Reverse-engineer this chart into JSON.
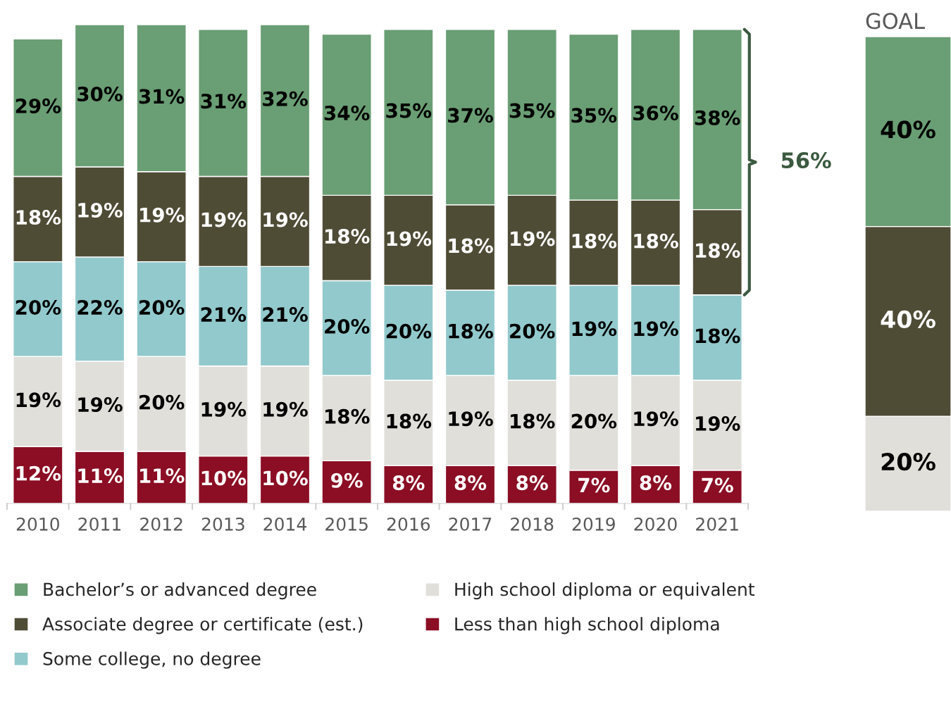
{
  "chart_data": [
    {
      "type": "bar",
      "stacked": true,
      "tick_labels": "x",
      "legend": "bottom",
      "grid": false,
      "categories": [
        "2010",
        "2011",
        "2012",
        "2013",
        "2014",
        "2015",
        "2016",
        "2017",
        "2018",
        "2019",
        "2020",
        "2021"
      ],
      "series": [
        {
          "name": "Less than high school diploma",
          "color": "#8b0e24",
          "values": [
            12,
            11,
            11,
            10,
            10,
            9,
            8,
            8,
            8,
            7,
            8,
            7
          ],
          "value_labels": [
            "12%",
            "11%",
            "11%",
            "10%",
            "10%",
            "9%",
            "8%",
            "8%",
            "8%",
            "7%",
            "8%",
            "7%"
          ]
        },
        {
          "name": "High school diploma or equivalent",
          "color": "#e0dfda",
          "values": [
            19,
            19,
            20,
            19,
            19,
            18,
            18,
            19,
            18,
            20,
            19,
            19
          ],
          "value_labels": [
            "19%",
            "19%",
            "20%",
            "19%",
            "19%",
            "18%",
            "18%",
            "19%",
            "18%",
            "20%",
            "19%",
            "19%"
          ]
        },
        {
          "name": "Some college, no degree",
          "color": "#92c9cc",
          "values": [
            20,
            22,
            20,
            21,
            21,
            20,
            20,
            18,
            20,
            19,
            19,
            18
          ],
          "value_labels": [
            "20%",
            "22%",
            "20%",
            "21%",
            "21%",
            "20%",
            "20%",
            "18%",
            "20%",
            "19%",
            "19%",
            "18%"
          ]
        },
        {
          "name": "Associate degree or certificate (est.)",
          "color": "#4f4c36",
          "values": [
            18,
            19,
            19,
            19,
            19,
            18,
            19,
            18,
            19,
            18,
            18,
            18
          ],
          "value_labels": [
            "18%",
            "19%",
            "19%",
            "19%",
            "19%",
            "18%",
            "19%",
            "18%",
            "19%",
            "18%",
            "18%",
            "18%"
          ]
        },
        {
          "name": "Bachelor’s or advanced degree",
          "color": "#6a9e74",
          "values": [
            29,
            30,
            31,
            31,
            32,
            34,
            35,
            37,
            35,
            35,
            36,
            38
          ],
          "value_labels": [
            "29%",
            "30%",
            "31%",
            "31%",
            "32%",
            "34%",
            "35%",
            "37%",
            "35%",
            "35%",
            "36%",
            "38%"
          ]
        }
      ],
      "annotations": [
        "56%"
      ]
    },
    {
      "type": "bar",
      "stacked": true,
      "tick_labels": false,
      "title": "GOAL",
      "categories": [
        null
      ],
      "series": [
        {
          "color": "#e0dfda",
          "values": [
            20
          ],
          "value_labels": [
            "20%"
          ]
        },
        {
          "color": "#4f4c36",
          "values": [
            40
          ],
          "value_labels": [
            "40%"
          ]
        },
        {
          "color": "#6a9e74",
          "values": [
            40
          ],
          "value_labels": [
            "40%"
          ]
        }
      ]
    }
  ]
}
